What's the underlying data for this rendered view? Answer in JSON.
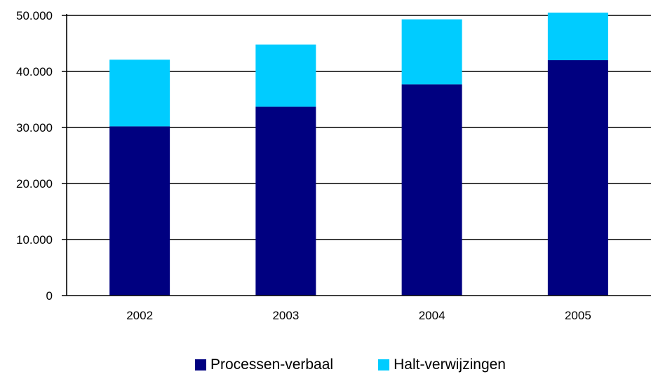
{
  "chart_data": {
    "type": "bar",
    "stacked": true,
    "categories": [
      "2002",
      "2003",
      "2004",
      "2005"
    ],
    "series": [
      {
        "name": "Processen-verbaal",
        "values": [
          30200,
          33700,
          37700,
          42000
        ],
        "color": "#000080"
      },
      {
        "name": "Halt-verwijzingen",
        "values": [
          11900,
          11100,
          11600,
          8500
        ],
        "color": "#00CCFF"
      }
    ],
    "ylim": [
      0,
      50000
    ],
    "yticks": [
      0,
      10000,
      20000,
      30000,
      40000,
      50000
    ],
    "ytick_labels": [
      "0",
      "10.000",
      "20.000",
      "30.000",
      "40.000",
      "50.000"
    ],
    "grid": true,
    "legend_position": "bottom",
    "title": "",
    "xlabel": "",
    "ylabel": ""
  }
}
